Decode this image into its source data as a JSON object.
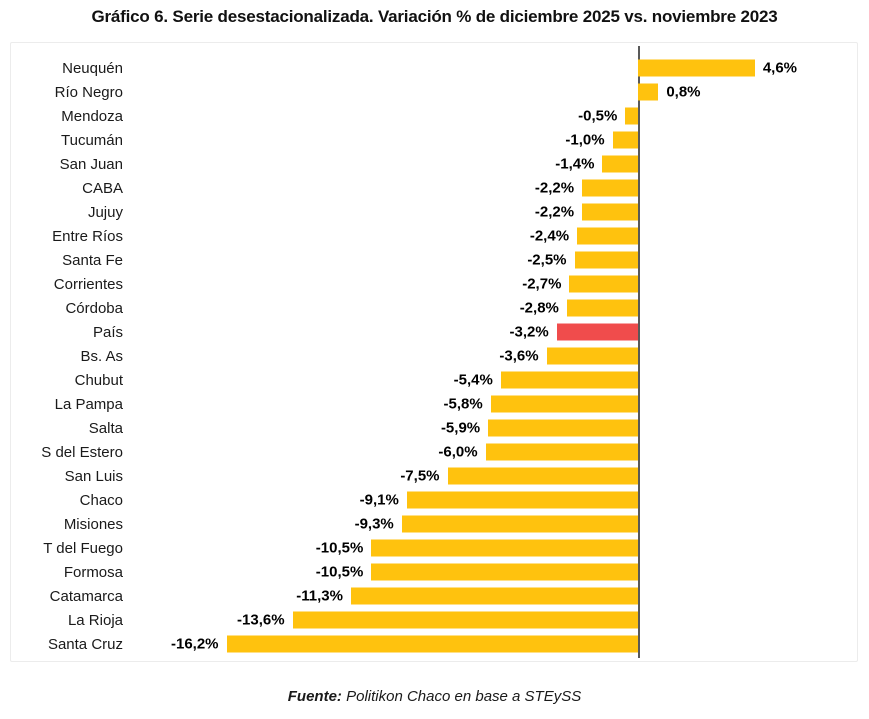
{
  "title": "Gráfico 6. Serie desestacionalizada. Variación % de diciembre 2025 vs. noviembre 2023",
  "footer": {
    "source_label": "Fuente:",
    "source_text": " Politikon Chaco en base a STEySS"
  },
  "chart_data": {
    "type": "bar",
    "orientation": "horizontal",
    "title": "Gráfico 6. Serie desestacionalizada. Variación % de diciembre 2025 vs. noviembre 2023",
    "categories": [
      "Neuquén",
      "Río Negro",
      "Mendoza",
      "Tucumán",
      "San Juan",
      "CABA",
      "Jujuy",
      "Entre Ríos",
      "Santa Fe",
      "Corrientes",
      "Córdoba",
      "País",
      "Bs. As",
      "Chubut",
      "La Pampa",
      "Salta",
      "S del Estero",
      "San Luis",
      "Chaco",
      "Misiones",
      "T del Fuego",
      "Formosa",
      "Catamarca",
      "La Rioja",
      "Santa Cruz"
    ],
    "values": [
      4.6,
      0.8,
      -0.5,
      -1.0,
      -1.4,
      -2.2,
      -2.2,
      -2.4,
      -2.5,
      -2.7,
      -2.8,
      -3.2,
      -3.6,
      -5.4,
      -5.8,
      -5.9,
      -6.0,
      -7.5,
      -9.1,
      -9.3,
      -10.5,
      -10.5,
      -11.3,
      -13.6,
      -16.2
    ],
    "value_labels": [
      "4,6%",
      "0,8%",
      "-0,5%",
      "-1,0%",
      "-1,4%",
      "-2,2%",
      "-2,2%",
      "-2,4%",
      "-2,5%",
      "-2,7%",
      "-2,8%",
      "-3,2%",
      "-3,6%",
      "-5,4%",
      "-5,8%",
      "-5,9%",
      "-6,0%",
      "-7,5%",
      "-9,1%",
      "-9,3%",
      "-10,5%",
      "-10,5%",
      "-11,3%",
      "-13,6%",
      "-16,2%"
    ],
    "highlight_category": "País",
    "bar_color": "#FFC20E",
    "highlight_color": "#F04C4C",
    "axis_color": "#595959",
    "xlim": [
      -20,
      9
    ],
    "grid": false,
    "legend": "none",
    "unit": "%"
  }
}
